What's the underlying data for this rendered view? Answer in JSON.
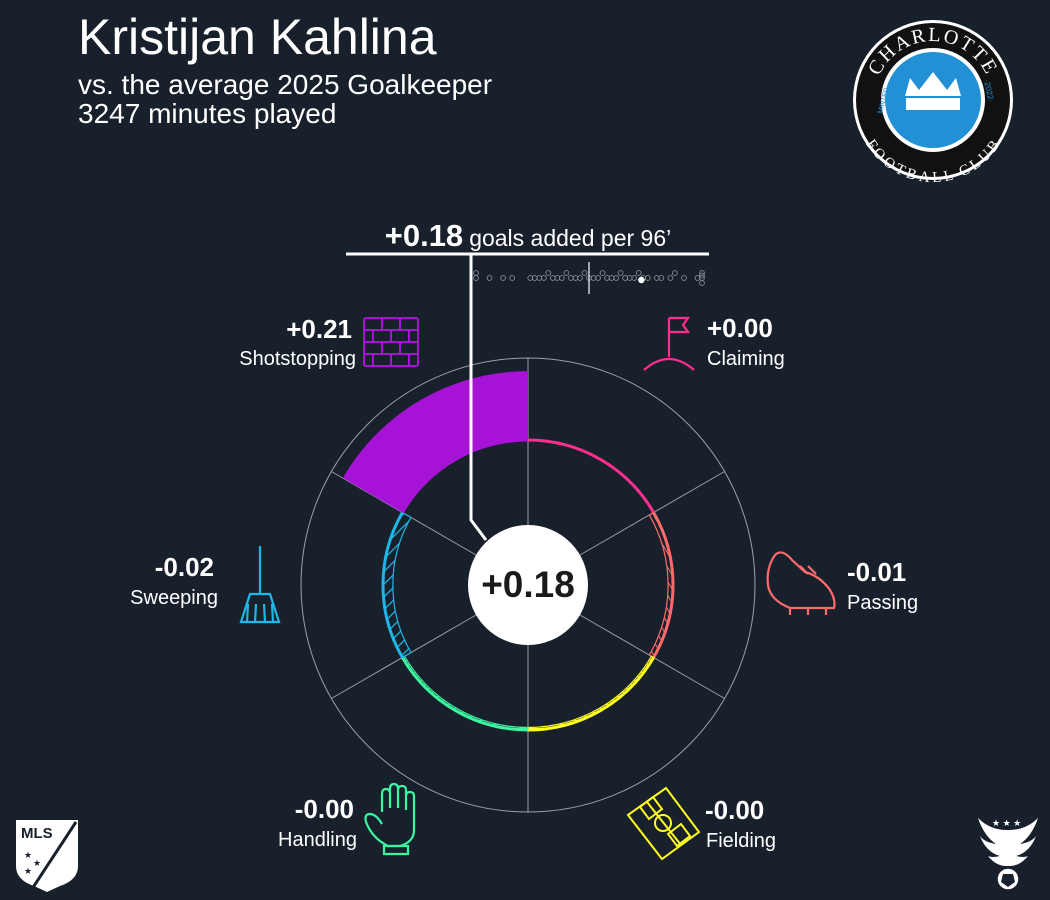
{
  "header": {
    "player_name": "Kristijan Kahlina",
    "comparison": "vs. the average 2025 Goalkeeper",
    "minutes": "3247 minutes played"
  },
  "colors": {
    "background": "#18202b",
    "shotstopping": "#a713d6",
    "claiming": "#ff2f92",
    "passing": "#ff6b6b",
    "fielding": "#ffff22",
    "handling": "#3df5a0",
    "sweeping": "#1fb6e8"
  },
  "logos": {
    "club_top_text": "CHARLOTTE",
    "club_bottom_text": "FOOTBALL CLUB",
    "club_left_text": "MINTED",
    "club_right_text": "·2022·",
    "league_text": "MLS"
  },
  "chart_data": {
    "type": "polar-bar",
    "total": {
      "value_label": "+0.18",
      "unit_label": "goals added per 96’",
      "center_label": "+0.18"
    },
    "segments": [
      {
        "name": "Claiming",
        "value": 0.0,
        "value_label": "+0.00",
        "icon": "flag-icon"
      },
      {
        "name": "Passing",
        "value": -0.01,
        "value_label": "-0.01",
        "icon": "boot-icon"
      },
      {
        "name": "Fielding",
        "value": -0.004,
        "value_label": "-0.00",
        "icon": "pitch-icon"
      },
      {
        "name": "Handling",
        "value": -0.001,
        "value_label": "-0.00",
        "icon": "glove-icon"
      },
      {
        "name": "Sweeping",
        "value": -0.02,
        "value_label": "-0.02",
        "icon": "broom-icon"
      },
      {
        "name": "Shotstopping",
        "value": 0.21,
        "value_label": "+0.21",
        "icon": "brick-wall-icon"
      }
    ],
    "distribution": [
      -0.3,
      -0.25,
      -0.22,
      -0.19,
      -0.17,
      -0.13,
      -0.12,
      -0.11,
      -0.1,
      -0.09,
      -0.08,
      -0.07,
      -0.06,
      -0.05,
      -0.04,
      -0.03,
      -0.02,
      -0.01,
      0.0,
      0.01,
      0.02,
      0.03,
      0.04,
      0.05,
      0.06,
      0.07,
      0.08,
      0.09,
      0.1,
      0.11,
      0.12,
      0.13,
      0.15,
      0.16,
      0.18,
      0.19,
      0.21,
      0.24,
      0.28,
      0.32,
      0.36,
      0.4
    ],
    "player_value": 0.18,
    "average_value": 0.0,
    "range": [
      -0.25,
      0.25
    ]
  }
}
